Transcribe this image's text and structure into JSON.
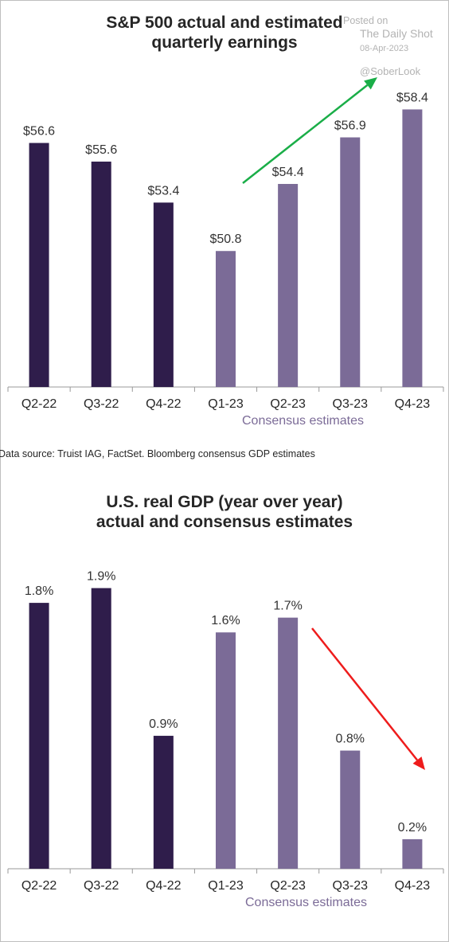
{
  "colors": {
    "actual": "#2f1d4b",
    "estimate": "#7b6b97",
    "green_arrow": "#1aae48",
    "red_arrow": "#ee1c1c",
    "axis": "#999999"
  },
  "watermark": {
    "line1": "Posted on",
    "line2": "The Daily Shot",
    "line3": "08-Apr-2023",
    "line4": "@SoberLook"
  },
  "source_note": "Data source: Truist IAG, FactSet. Bloomberg consensus GDP estimates",
  "chart_data": [
    {
      "type": "bar",
      "title_lines": [
        "S&P 500 actual and estimated",
        "quarterly earnings"
      ],
      "categories": [
        "Q2-22",
        "Q3-22",
        "Q4-22",
        "Q1-23",
        "Q2-23",
        "Q3-23",
        "Q4-23"
      ],
      "values": [
        56.6,
        55.6,
        53.4,
        50.8,
        54.4,
        56.9,
        58.4
      ],
      "value_labels": [
        "$56.6",
        "$55.6",
        "$53.4",
        "$50.8",
        "$54.4",
        "$56.9",
        "$58.4"
      ],
      "estimate_from_index": 3,
      "estimate_label": "Consensus estimates",
      "ylim": [
        43.5,
        60
      ],
      "trend_arrow": "up",
      "xlabel": "",
      "ylabel": ""
    },
    {
      "type": "bar",
      "title_lines": [
        "U.S. real GDP (year over year)",
        "actual and consensus estimates"
      ],
      "categories": [
        "Q2-22",
        "Q3-22",
        "Q4-22",
        "Q1-23",
        "Q2-23",
        "Q3-23",
        "Q4-23"
      ],
      "values": [
        1.8,
        1.9,
        0.9,
        1.6,
        1.7,
        0.8,
        0.2
      ],
      "value_labels": [
        "1.8%",
        "1.9%",
        "0.9%",
        "1.6%",
        "1.7%",
        "0.8%",
        "0.2%"
      ],
      "estimate_from_index": 3,
      "estimate_label": "Consensus estimates",
      "ylim": [
        0,
        2.0
      ],
      "trend_arrow": "down",
      "xlabel": "",
      "ylabel": ""
    }
  ]
}
